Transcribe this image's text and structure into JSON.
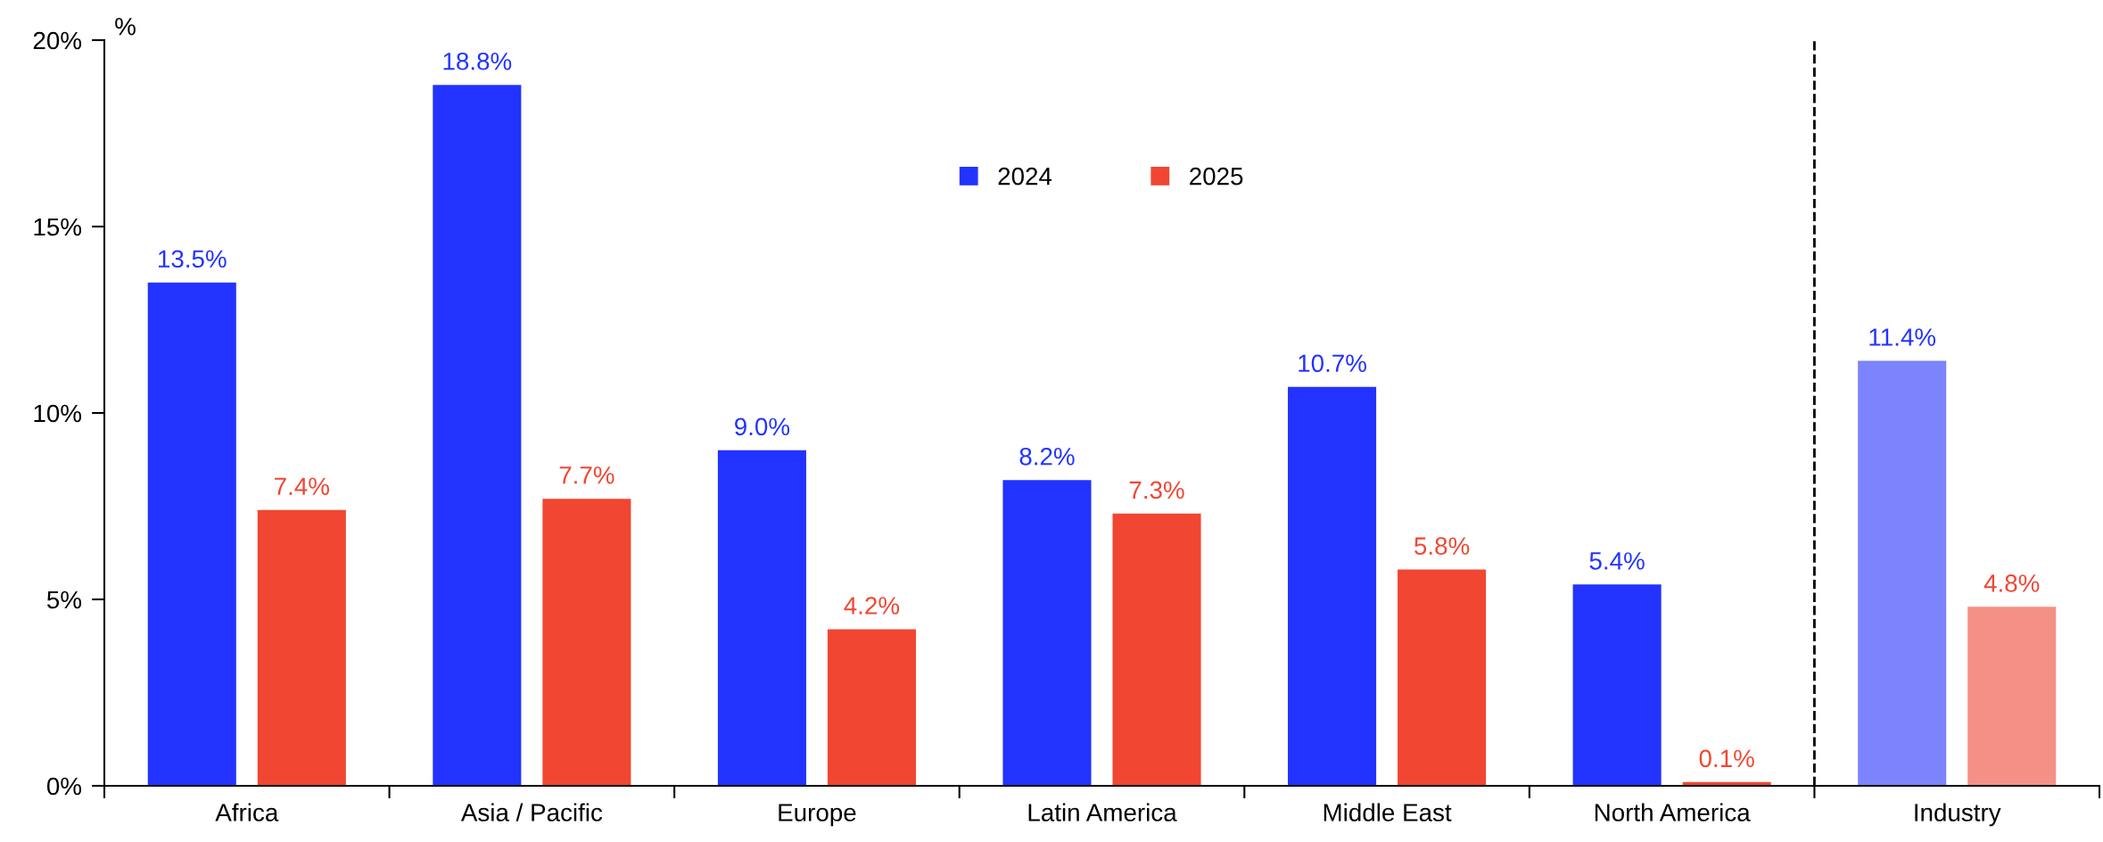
{
  "chart_data": {
    "type": "bar",
    "ylabel": "%",
    "categories": [
      "Africa",
      "Asia / Pacific",
      "Europe",
      "Latin America",
      "Middle East",
      "North America",
      "Industry"
    ],
    "series": [
      {
        "name": "2024",
        "color": "#2233ff",
        "colors": [
          "#2233ff",
          "#2233ff",
          "#2233ff",
          "#2233ff",
          "#2233ff",
          "#2233ff",
          "#7b84fc"
        ],
        "values": [
          13.5,
          18.8,
          9.0,
          8.2,
          10.7,
          5.4,
          11.4
        ],
        "value_labels": [
          "13.5%",
          "18.8%",
          "9.0%",
          "8.2%",
          "10.7%",
          "5.4%",
          "11.4%"
        ]
      },
      {
        "name": "2025",
        "color": "#f04632",
        "colors": [
          "#f04632",
          "#f04632",
          "#f04632",
          "#f04632",
          "#f04632",
          "#f04632",
          "#f59086"
        ],
        "values": [
          7.4,
          7.7,
          4.2,
          7.3,
          5.8,
          0.1,
          4.8
        ],
        "value_labels": [
          "7.4%",
          "7.7%",
          "4.2%",
          "7.3%",
          "5.8%",
          "0.1%",
          "4.8%"
        ]
      }
    ],
    "ylim": [
      0,
      20
    ],
    "yticks": [
      {
        "value": 0,
        "label": "0%"
      },
      {
        "value": 5,
        "label": "5%"
      },
      {
        "value": 10,
        "label": "10%"
      },
      {
        "value": 15,
        "label": "15%"
      },
      {
        "value": 20,
        "label": "20%"
      }
    ],
    "grid": false,
    "legend": "top"
  }
}
